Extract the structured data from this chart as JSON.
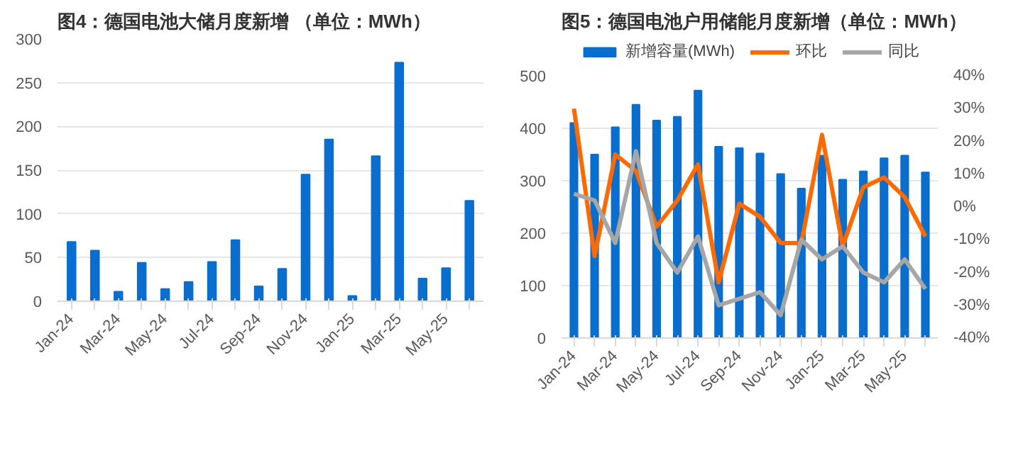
{
  "chart_data": [
    {
      "type": "bar",
      "title": "图4：德国电池大储月度新增 （单位：MWh）",
      "categories": [
        "Jan-24",
        null,
        "Mar-24",
        null,
        "May-24",
        null,
        "Jul-24",
        null,
        "Sep-24",
        null,
        "Nov-24",
        null,
        "Jan-25",
        null,
        "Mar-25",
        null,
        "May-25",
        null
      ],
      "series": [
        {
          "color": "#0a6ecf",
          "values": [
            68,
            58,
            11,
            44,
            14,
            22,
            45,
            70,
            17,
            37,
            145,
            185,
            6,
            166,
            273,
            26,
            38,
            115
          ]
        }
      ],
      "ylim": [
        0,
        300
      ],
      "yticks": [
        0,
        50,
        100,
        150,
        200,
        250,
        300
      ],
      "grid": "y"
    },
    {
      "type": "bar",
      "title": "图5：德国电池户用储能月度新增（单位：MWh）",
      "categories": [
        "Jan-24",
        null,
        "Mar-24",
        null,
        "May-24",
        null,
        "Jul-24",
        null,
        "Sep-24",
        null,
        "Nov-24",
        null,
        "Jan-25",
        null,
        "Mar-25",
        null,
        "May-25",
        null
      ],
      "series": [
        {
          "name": "新增容量(MWh)",
          "color": "#0a6ecf",
          "values": [
            410,
            350,
            402,
            445,
            415,
            422,
            472,
            365,
            362,
            352,
            313,
            285,
            348,
            302,
            318,
            343,
            348,
            316
          ]
        },
        {
          "name": "环比",
          "type": "line",
          "axis": "y2",
          "color": "#ff6a00",
          "values": [
            30,
            -15,
            16,
            11,
            -6,
            2,
            13,
            -23,
            1,
            -3,
            -11,
            -11,
            22,
            -12,
            6,
            9,
            3,
            -9
          ]
        },
        {
          "name": "同比",
          "type": "line",
          "axis": "y2",
          "color": "#a6a6a6",
          "values": [
            4,
            2,
            -11,
            17,
            -11,
            -20,
            -9,
            -30,
            -28,
            -26,
            -33,
            -10,
            -16,
            -12,
            -20,
            -23,
            -16,
            -25
          ]
        }
      ],
      "ylim": [
        0,
        500
      ],
      "yticks": [
        0,
        100,
        200,
        300,
        400,
        500
      ],
      "y2lim": [
        -40,
        40
      ],
      "y2ticks": [
        {
          "value": -40,
          "label": "-40%"
        },
        {
          "value": -30,
          "label": "-30%"
        },
        {
          "value": -20,
          "label": "-20%"
        },
        {
          "value": -10,
          "label": "-10%"
        },
        {
          "value": 0,
          "label": "0%"
        },
        {
          "value": 10,
          "label": "10%"
        },
        {
          "value": 20,
          "label": "20%"
        },
        {
          "value": 30,
          "label": "30%"
        },
        {
          "value": 40,
          "label": "40%"
        }
      ],
      "grid": "y",
      "legend": "top",
      "marker": "none",
      "line_style": "solid"
    }
  ]
}
